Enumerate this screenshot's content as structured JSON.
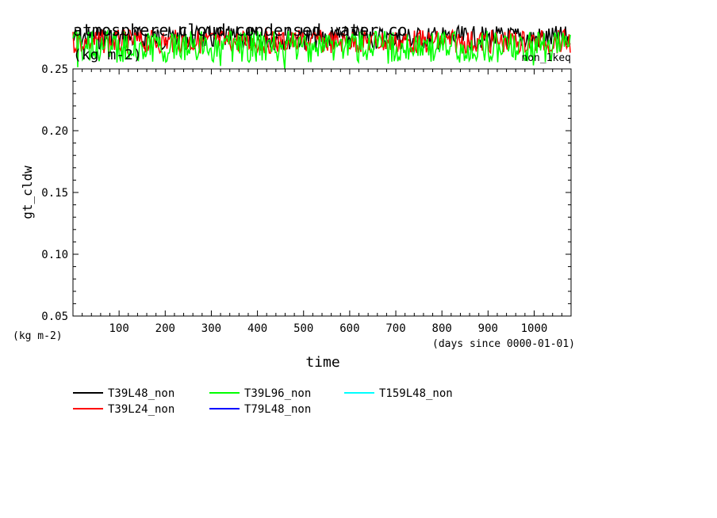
{
  "chart_data": {
    "type": "line",
    "title": "atmosphere cloud condensed water co",
    "subtitle": "(kg m-2)",
    "run_label": "non_1keq",
    "xlabel": "time",
    "x_units": "(days since 0000-01-01)",
    "ylabel": "gt_cldw",
    "y_units": "(kg m-2)",
    "xlim": [
      0,
      1080
    ],
    "ylim": [
      0.05,
      0.25
    ],
    "x_ticks": [
      "100",
      "200",
      "300",
      "400",
      "500",
      "600",
      "700",
      "800",
      "900",
      "1000"
    ],
    "y_ticks": [
      "0.05",
      "0.10",
      "0.15",
      "0.20",
      "0.25"
    ],
    "grid": false,
    "legend_position": "bottom",
    "series": [
      {
        "name": "T39L48_non",
        "color": "#000000",
        "x": [
          0,
          1080
        ],
        "y": [
          0.275,
          0.275
        ]
      },
      {
        "name": "T39L24_non",
        "color": "#ff0000",
        "x": [
          0,
          1080
        ],
        "y": [
          0.272,
          0.272
        ]
      },
      {
        "name": "T39L96_non",
        "color": "#00ff00",
        "x": [
          0,
          1080
        ],
        "y": [
          0.268,
          0.268
        ]
      },
      {
        "name": "T79L48_non",
        "color": "#0000ff",
        "x": [],
        "y": []
      },
      {
        "name": "T159L48_non",
        "color": "#00ffff",
        "x": [],
        "y": []
      }
    ]
  }
}
